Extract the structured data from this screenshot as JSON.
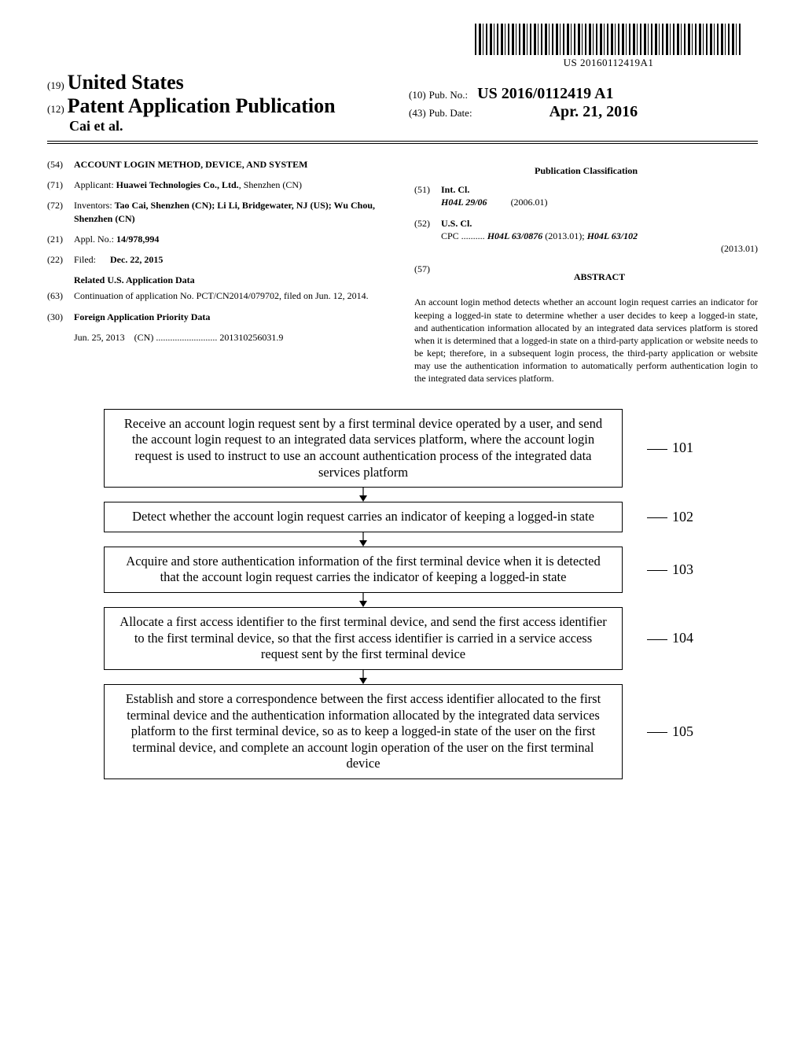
{
  "barcode": {
    "doc_number": "US 20160112419A1"
  },
  "header": {
    "kind19": "(19)",
    "country": "United States",
    "kind12": "(12)",
    "doc_type": "Patent Application Publication",
    "authors": "Cai et al.",
    "kind10": "(10)",
    "pub_no_label": "Pub. No.:",
    "pub_no": "US 2016/0112419 A1",
    "kind43": "(43)",
    "pub_date_label": "Pub. Date:",
    "pub_date": "Apr. 21, 2016"
  },
  "left_col": {
    "f54": {
      "num": "(54)",
      "title": "ACCOUNT LOGIN METHOD, DEVICE, AND SYSTEM"
    },
    "f71": {
      "num": "(71)",
      "label": "Applicant:",
      "val": "Huawei Technologies Co., Ltd.",
      "loc": "Shenzhen (CN)"
    },
    "f72": {
      "num": "(72)",
      "label": "Inventors:",
      "val": "Tao Cai, Shenzhen (CN); Li Li, Bridgewater, NJ (US); Wu Chou, Shenzhen (CN)"
    },
    "f21": {
      "num": "(21)",
      "label": "Appl. No.:",
      "val": "14/978,994"
    },
    "f22": {
      "num": "(22)",
      "label": "Filed:",
      "val": "Dec. 22, 2015"
    },
    "related_heading": "Related U.S. Application Data",
    "f63": {
      "num": "(63)",
      "val": "Continuation of application No. PCT/CN2014/079702, filed on Jun. 12, 2014."
    },
    "f30_heading": "Foreign Application Priority Data",
    "f30": {
      "num": "(30)",
      "date": "Jun. 25, 2013",
      "country": "(CN)",
      "dots": "..........................",
      "appno": "201310256031.9"
    }
  },
  "right_col": {
    "classification_heading": "Publication Classification",
    "f51": {
      "num": "(51)",
      "label": "Int. Cl.",
      "code": "H04L 29/06",
      "year": "(2006.01)"
    },
    "f52": {
      "num": "(52)",
      "label": "U.S. Cl.",
      "cpc_label": "CPC ..........",
      "cpc1": "H04L 63/0876",
      "cpc1y": "(2013.01);",
      "cpc2": "H04L 63/102",
      "cpc2y": "(2013.01)"
    },
    "f57": {
      "num": "(57)",
      "label": "ABSTRACT"
    },
    "abstract": "An account login method detects whether an account login request carries an indicator for keeping a logged-in state to determine whether a user decides to keep a logged-in state, and authentication information allocated by an integrated data services platform is stored when it is determined that a logged-in state on a third-party application or website needs to be kept; therefore, in a subsequent login process, the third-party application or website may use the authentication information to automatically perform authentication login to the integrated data services platform."
  },
  "flowchart": {
    "font_size": 16.5,
    "box_border_color": "#000000",
    "label_font_size": 18,
    "arrow_height": 18,
    "steps": [
      {
        "label": "101",
        "text": "Receive an account login request sent by a first terminal device operated by a user, and send the account login request to an integrated data services platform, where the account login request is used to instruct to use an account authentication process of the integrated data services platform"
      },
      {
        "label": "102",
        "text": "Detect whether the account login request carries an indicator of keeping a logged-in state"
      },
      {
        "label": "103",
        "text": "Acquire and store authentication information of the first terminal device when it is detected that the account login request carries the indicator of keeping a logged-in state"
      },
      {
        "label": "104",
        "text": "Allocate a first access identifier to the first terminal device, and send the first access identifier to the first terminal device, so that the first access identifier is carried in a service access request sent by the first terminal device"
      },
      {
        "label": "105",
        "text": "Establish and store a correspondence between the first access identifier allocated to the first terminal device and the authentication information allocated by the integrated data services platform to the first terminal device, so as to keep a logged-in state of the user on the first terminal device, and complete an account login operation of the user on the first terminal device"
      }
    ]
  },
  "colors": {
    "text": "#000000",
    "background": "#ffffff",
    "rule": "#000000"
  }
}
